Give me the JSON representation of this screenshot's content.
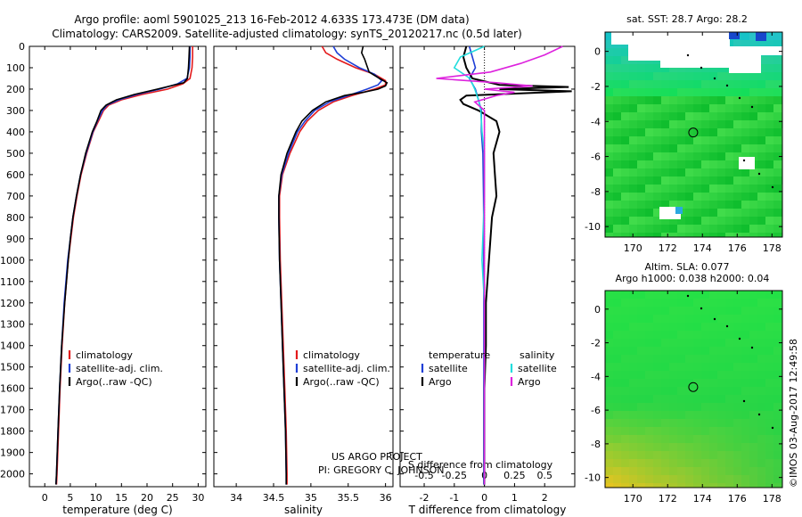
{
  "header": {
    "line1": "Argo profile: aoml 5901025_213 16-Feb-2012 4.633S 173.473E (DM data)",
    "line2": "Climatology: CARS2009. Satellite-adjusted climatology: synTS_20120217.nc (0.5d later)"
  },
  "colors": {
    "climatology": "#e31a1c",
    "satellite": "#1f3fd6",
    "argo": "#000000",
    "sal_satellite": "#22dddd",
    "sal_argo": "#dd22dd"
  },
  "pressure_ticks": [
    "0",
    "100",
    "200",
    "300",
    "400",
    "500",
    "600",
    "700",
    "800",
    "900",
    "1000",
    "1100",
    "1200",
    "1300",
    "1400",
    "1500",
    "1600",
    "1700",
    "1800",
    "1900",
    "2000"
  ],
  "chart_data": [
    {
      "type": "line",
      "name": "temperature-panel",
      "xlabel": "temperature (deg C)",
      "x_ticks": [
        "0",
        "5",
        "10",
        "15",
        "20",
        "25",
        "30"
      ],
      "xlim": [
        -3,
        31.5
      ],
      "ylim": [
        2060,
        0
      ],
      "legend": [
        "climatology",
        "satellite-adj. clim.",
        "Argo(..raw -QC)"
      ],
      "legend_position": "lower-center",
      "series": [
        {
          "name": "climatology",
          "depth": [
            0,
            50,
            100,
            150,
            175,
            200,
            225,
            250,
            275,
            300,
            350,
            400,
            500,
            600,
            700,
            800,
            900,
            1000,
            1200,
            1400,
            1600,
            1800,
            2000,
            2050
          ],
          "values": [
            28.9,
            28.9,
            28.8,
            28.4,
            27.0,
            24.0,
            19.0,
            15.0,
            12.5,
            11.5,
            10.5,
            9.5,
            8.2,
            7.1,
            6.3,
            5.6,
            5.1,
            4.6,
            3.9,
            3.4,
            3.0,
            2.7,
            2.4,
            2.3
          ]
        },
        {
          "name": "satellite-adj. clim.",
          "depth": [
            0,
            50,
            100,
            150,
            175,
            200,
            225,
            250,
            275,
            300,
            350,
            400,
            500,
            600,
            700,
            800,
            900,
            1000,
            1200,
            1400,
            1600,
            1800,
            2000,
            2050
          ],
          "values": [
            28.4,
            28.4,
            28.3,
            27.8,
            26.0,
            22.5,
            18.0,
            14.5,
            12.2,
            11.3,
            10.3,
            9.4,
            8.1,
            7.0,
            6.2,
            5.5,
            5.0,
            4.5,
            3.8,
            3.3,
            2.9,
            2.6,
            2.3,
            2.2
          ]
        },
        {
          "name": "Argo(..raw -QC)",
          "depth": [
            0,
            50,
            100,
            150,
            170,
            200,
            225,
            250,
            275,
            300,
            350,
            400,
            500,
            600,
            700,
            800,
            900,
            1000,
            1200,
            1400,
            1600,
            1800,
            2000,
            2050
          ],
          "values": [
            28.3,
            28.2,
            28.1,
            27.9,
            27.2,
            22.0,
            17.5,
            14.0,
            12.0,
            11.0,
            10.2,
            9.3,
            8.0,
            7.0,
            6.2,
            5.5,
            5.0,
            4.6,
            3.9,
            3.3,
            2.9,
            2.6,
            2.3,
            2.2
          ]
        }
      ]
    },
    {
      "type": "line",
      "name": "salinity-panel",
      "xlabel": "salinity",
      "x_ticks": [
        "34",
        "34.5",
        "35",
        "35.5",
        "36"
      ],
      "xlim": [
        33.7,
        36.1
      ],
      "ylim": [
        2060,
        0
      ],
      "legend": [
        "climatology",
        "satellite-adj. clim.",
        "Argo(..raw -QC)"
      ],
      "legend_position": "lower-right",
      "series": [
        {
          "name": "climatology",
          "depth": [
            0,
            30,
            60,
            100,
            130,
            160,
            180,
            200,
            230,
            260,
            300,
            350,
            400,
            500,
            600,
            700,
            800,
            1000,
            1200,
            1400,
            1600,
            1800,
            2000,
            2050
          ],
          "values": [
            35.15,
            35.2,
            35.35,
            35.6,
            35.85,
            36.0,
            36.0,
            35.85,
            35.55,
            35.3,
            35.1,
            34.95,
            34.85,
            34.72,
            34.62,
            34.58,
            34.58,
            34.59,
            34.61,
            34.63,
            34.65,
            34.67,
            34.68,
            34.68
          ]
        },
        {
          "name": "satellite-adj. clim.",
          "depth": [
            0,
            30,
            60,
            100,
            130,
            160,
            180,
            200,
            230,
            260,
            300,
            350,
            400,
            500,
            600,
            700,
            800,
            1000,
            1200,
            1400,
            1600,
            1800,
            2000,
            2050
          ],
          "values": [
            35.3,
            35.35,
            35.45,
            35.65,
            35.85,
            35.95,
            35.9,
            35.75,
            35.5,
            35.25,
            35.05,
            34.92,
            34.82,
            34.7,
            34.61,
            34.57,
            34.57,
            34.58,
            34.6,
            34.62,
            34.64,
            34.66,
            34.67,
            34.67
          ]
        },
        {
          "name": "Argo(..raw -QC)",
          "depth": [
            0,
            30,
            60,
            90,
            120,
            150,
            170,
            185,
            200,
            215,
            230,
            260,
            300,
            350,
            400,
            500,
            600,
            700,
            800,
            1000,
            1200,
            1400,
            1600,
            1800,
            2000,
            2050
          ],
          "values": [
            35.7,
            35.68,
            35.72,
            35.75,
            35.78,
            35.92,
            36.02,
            36.0,
            35.9,
            35.7,
            35.45,
            35.2,
            35.02,
            34.88,
            34.8,
            34.68,
            34.6,
            34.57,
            34.57,
            34.58,
            34.6,
            34.62,
            34.64,
            34.66,
            34.67,
            34.67
          ]
        }
      ]
    },
    {
      "type": "line",
      "name": "difference-panel",
      "xlabel": "T difference from climatology",
      "xlabel_top": "S difference from climatology",
      "x_ticks_T": [
        "-2",
        "-1",
        "0",
        "1",
        "2"
      ],
      "x_ticks_S": [
        "-0.5",
        "-0.25",
        "0",
        "0.25",
        "0.5"
      ],
      "xlim_T": [
        -2.8,
        3.0
      ],
      "ylim": [
        2060,
        0
      ],
      "legend_groups": [
        {
          "title": "temperature",
          "items": [
            "satellite",
            "Argo"
          ]
        },
        {
          "title": "salinity",
          "items": [
            "satellite",
            "Argo"
          ]
        }
      ],
      "legend_position": "lower-center",
      "series": [
        {
          "name": "temperature satellite",
          "depth": [
            0,
            50,
            100,
            150,
            200,
            250,
            300,
            400,
            500,
            700,
            900,
            1000,
            1200,
            1400,
            1600,
            1800,
            2000,
            2050
          ],
          "values": [
            -0.5,
            -0.4,
            -0.3,
            -0.5,
            -0.3,
            -0.2,
            -0.1,
            -0.1,
            -0.05,
            -0.03,
            -0.02,
            -0.02,
            -0.02,
            -0.02,
            -0.02,
            -0.02,
            -0.02,
            -0.02
          ]
        },
        {
          "name": "temperature Argo",
          "depth": [
            0,
            50,
            100,
            150,
            180,
            190,
            200,
            210,
            220,
            230,
            250,
            270,
            300,
            350,
            400,
            500,
            600,
            700,
            800,
            900,
            1000,
            1200,
            1400,
            1600,
            1800,
            2000,
            2050
          ],
          "values": [
            -0.6,
            -0.7,
            -0.6,
            -0.4,
            0.5,
            2.8,
            0.5,
            2.9,
            1.2,
            -0.6,
            -0.8,
            -0.7,
            -0.2,
            0.4,
            0.5,
            0.3,
            0.35,
            0.4,
            0.25,
            0.2,
            0.15,
            0.05,
            0.05,
            0.0,
            0.0,
            0.0,
            0.0
          ]
        },
        {
          "name": "salinity satellite",
          "depth": [
            0,
            50,
            100,
            150,
            200,
            250,
            300,
            400,
            500,
            700,
            1000,
            1200,
            1400,
            1600,
            1800,
            2000,
            2050
          ],
          "values": [
            0.0,
            -0.2,
            -0.25,
            -0.12,
            -0.08,
            -0.05,
            -0.03,
            -0.02,
            0.0,
            0.0,
            -0.02,
            0.0,
            0.0,
            0.0,
            0.0,
            0.0,
            0.0
          ]
        },
        {
          "name": "salinity Argo",
          "depth": [
            0,
            40,
            80,
            120,
            150,
            170,
            185,
            200,
            215,
            230,
            260,
            300,
            400,
            500,
            700,
            1000,
            1400,
            2000,
            2050
          ],
          "values": [
            0.65,
            0.5,
            0.3,
            0.05,
            -0.4,
            0.1,
            0.4,
            0.0,
            0.25,
            0.1,
            -0.08,
            0.0,
            0.0,
            0.0,
            0.0,
            0.0,
            0.0,
            0.0,
            0.0
          ]
        }
      ]
    },
    {
      "type": "heatmap",
      "name": "sst-map",
      "title": "sat. SST: 28.7  Argo: 28.2",
      "x_ticks": [
        "170",
        "172",
        "174",
        "176",
        "178"
      ],
      "y_ticks": [
        "0",
        "-2",
        "-4",
        "-6",
        "-8",
        "-10"
      ],
      "xlim": [
        168.4,
        178.6
      ],
      "ylim": [
        -10.6,
        1.1
      ],
      "marker": {
        "lon": 173.47,
        "lat": -4.63
      }
    },
    {
      "type": "heatmap",
      "name": "sla-map",
      "title": "Altim. SLA: 0.077",
      "subtitle": "Argo h1000: 0.038  h2000: 0.04",
      "x_ticks": [
        "170",
        "172",
        "174",
        "176",
        "178"
      ],
      "y_ticks": [
        "0",
        "-2",
        "-4",
        "-6",
        "-8",
        "-10"
      ],
      "xlim": [
        168.4,
        178.6
      ],
      "ylim": [
        -10.6,
        1.1
      ],
      "marker": {
        "lon": 173.47,
        "lat": -4.63
      }
    }
  ],
  "annotations": {
    "project": "US ARGO PROJECT",
    "pi": "PI: GREGORY C. JOHNSON",
    "watermark": "©IMOS 03-Aug-2017 12:49:58"
  }
}
